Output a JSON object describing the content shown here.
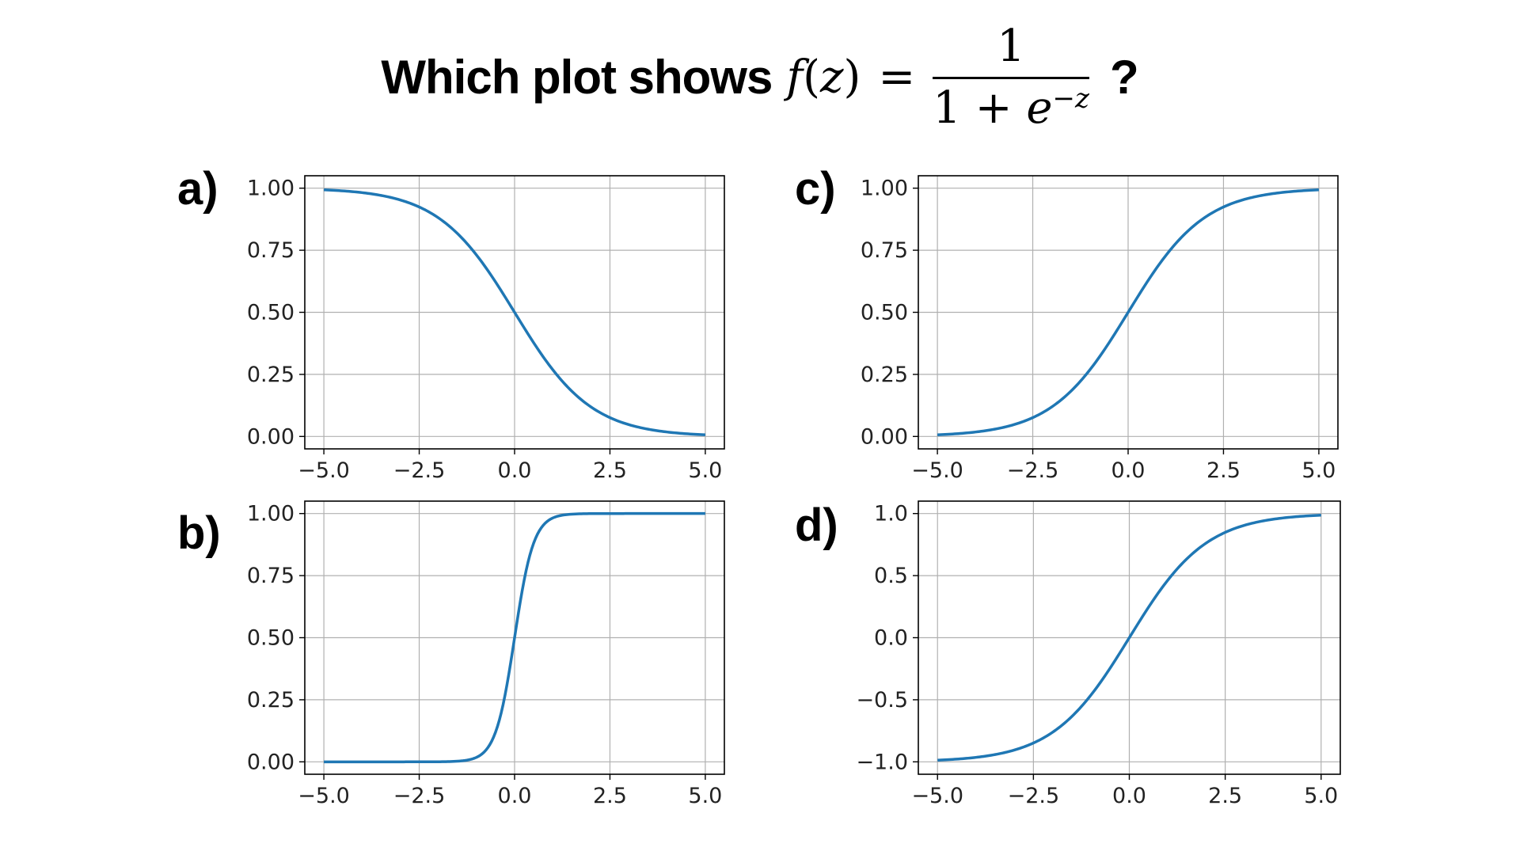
{
  "title": {
    "text": "Which plot shows",
    "func_name": "f",
    "func_arg": "z",
    "numerator": "1",
    "denominator_base": "1 + ",
    "denominator_e": "e",
    "denominator_exp": "−z",
    "suffix": "?"
  },
  "chart_data": [
    {
      "label": "a)",
      "type": "line",
      "function": "1 / (1 + exp(z))",
      "x": [
        -5,
        -4,
        -3,
        -2,
        -1,
        0,
        1,
        2,
        3,
        4,
        5
      ],
      "y": [
        0.993,
        0.982,
        0.953,
        0.881,
        0.731,
        0.5,
        0.269,
        0.119,
        0.047,
        0.018,
        0.007
      ],
      "xlim": [
        -5,
        5
      ],
      "ylim": [
        0,
        1
      ],
      "xticks": [
        "−5.0",
        "−2.5",
        "0.0",
        "2.5",
        "5.0"
      ],
      "yticks": [
        "0.00",
        "0.25",
        "0.50",
        "0.75",
        "1.00"
      ],
      "grid": true,
      "color": "#1f77b4"
    },
    {
      "label": "c)",
      "type": "line",
      "function": "1 / (1 + exp(-z))",
      "x": [
        -5,
        -4,
        -3,
        -2,
        -1,
        0,
        1,
        2,
        3,
        4,
        5
      ],
      "y": [
        0.007,
        0.018,
        0.047,
        0.119,
        0.269,
        0.5,
        0.731,
        0.881,
        0.953,
        0.982,
        0.993
      ],
      "xlim": [
        -5,
        5
      ],
      "ylim": [
        0,
        1
      ],
      "xticks": [
        "−5.0",
        "−2.5",
        "0.0",
        "2.5",
        "5.0"
      ],
      "yticks": [
        "0.00",
        "0.25",
        "0.50",
        "0.75",
        "1.00"
      ],
      "grid": true,
      "color": "#1f77b4"
    },
    {
      "label": "b)",
      "type": "line",
      "function": "1 / (1 + exp(-4z))",
      "x": [
        -5,
        -4,
        -3,
        -2,
        -1,
        -0.5,
        0,
        0.5,
        1,
        2,
        3,
        4,
        5
      ],
      "y": [
        0.0,
        0.0,
        0.0,
        0.0,
        0.018,
        0.119,
        0.5,
        0.881,
        0.982,
        1.0,
        1.0,
        1.0,
        1.0
      ],
      "xlim": [
        -5,
        5
      ],
      "ylim": [
        0,
        1
      ],
      "xticks": [
        "−5.0",
        "−2.5",
        "0.0",
        "2.5",
        "5.0"
      ],
      "yticks": [
        "0.00",
        "0.25",
        "0.50",
        "0.75",
        "1.00"
      ],
      "grid": true,
      "color": "#1f77b4"
    },
    {
      "label": "d)",
      "type": "line",
      "function": "tanh(z/2)",
      "x": [
        -5,
        -4,
        -3,
        -2,
        -1,
        0,
        1,
        2,
        3,
        4,
        5
      ],
      "y": [
        -0.987,
        -0.964,
        -0.905,
        -0.762,
        -0.462,
        0.0,
        0.462,
        0.762,
        0.905,
        0.964,
        0.987
      ],
      "xlim": [
        -5,
        5
      ],
      "ylim": [
        -1,
        1
      ],
      "xticks": [
        "−5.0",
        "−2.5",
        "0.0",
        "2.5",
        "5.0"
      ],
      "yticks": [
        "−1.0",
        "−0.5",
        "0.0",
        "0.5",
        "1.0"
      ],
      "grid": true,
      "color": "#1f77b4"
    }
  ]
}
